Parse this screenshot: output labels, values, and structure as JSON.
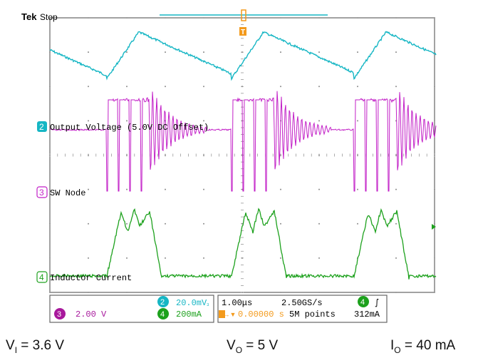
{
  "header": {
    "brand": "Tek",
    "state": "Stop"
  },
  "trigger": {
    "marker": "T"
  },
  "traces": {
    "output": {
      "ch": "2",
      "label": "Output Voltage (5.0V DC Offset)",
      "color": "#16b6c4"
    },
    "sw": {
      "ch": "3",
      "label": "SW Node",
      "color": "#c21fc7"
    },
    "current": {
      "ch": "4",
      "label": "Inductor Current",
      "color": "#1da11d"
    }
  },
  "readout": {
    "ch2": {
      "num": "2",
      "scale": "20.0mV",
      "suffix": "₃"
    },
    "ch3": {
      "num": "3",
      "scale": "2.00 V"
    },
    "ch4": {
      "num": "4",
      "scale": "200mA"
    },
    "time": {
      "div": "1.00μs",
      "rate": "2.50GS/s",
      "pos": "0.00000 s",
      "points": "5M points",
      "pos_prefix": "T→▼"
    },
    "trig": {
      "ch": "4",
      "level": "312mA",
      "slope": "∫"
    }
  },
  "caption": {
    "vi": {
      "sym": "V",
      "sub": "I",
      "val": " = 3.6 V"
    },
    "vo": {
      "sym": "V",
      "sub": "O",
      "val": " = 5 V"
    },
    "io": {
      "sym": "I",
      "sub": "O",
      "val": " = 40 mA"
    }
  },
  "colors": {
    "ch2": "#16b6c4",
    "ch3": "#c21fc7",
    "ch4": "#1da11d",
    "trigger": "#f39a1c",
    "grid": "#6c6c6c"
  }
}
